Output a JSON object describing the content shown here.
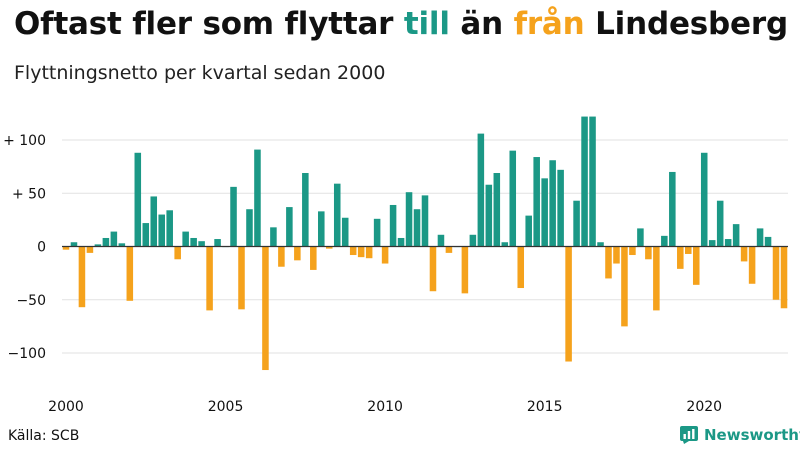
{
  "title": {
    "prefix": "Oftast fler som flyttar",
    "pos_word": "till",
    "middle": "än",
    "neg_word": "från",
    "place": "Lindesberg"
  },
  "subtitle": "Flyttningsnetto per kvartal sedan 2000",
  "source": "Källa: SCB",
  "brand": {
    "name": "Newsworthy",
    "icon": "newsworthy-chart-icon"
  },
  "colors": {
    "positive": "#1b9886",
    "negative": "#f5a21c",
    "text": "#111111",
    "grid": "#e2e2e2"
  },
  "chart_data": {
    "type": "bar",
    "title": "Flyttningsnetto per kvartal sedan 2000",
    "x_start": "2000 Q1",
    "x_ticks": [
      "2000",
      "2005",
      "2010",
      "2015",
      "2020"
    ],
    "y_ticks": [
      "+ 100",
      "+  50",
      "0",
      "−50",
      "−100"
    ],
    "y_tick_values": [
      100,
      50,
      0,
      -50,
      -100
    ],
    "ylim": [
      -120,
      125
    ],
    "grid": true,
    "values": [
      -3,
      4,
      -57,
      -6,
      2,
      8,
      14,
      3,
      -51,
      88,
      22,
      47,
      30,
      34,
      -12,
      14,
      8,
      5,
      -60,
      7,
      0,
      56,
      -59,
      35,
      91,
      -116,
      18,
      -19,
      37,
      -13,
      69,
      -22,
      33,
      -2,
      59,
      27,
      -8,
      -10,
      -11,
      26,
      -16,
      39,
      8,
      51,
      35,
      48,
      -42,
      11,
      -6,
      0,
      -44,
      11,
      106,
      58,
      69,
      4,
      90,
      -39,
      29,
      84,
      64,
      81,
      72,
      -108,
      43,
      122,
      122,
      4,
      -30,
      -16,
      -75,
      -8,
      17,
      -12,
      -60,
      10,
      70,
      -21,
      -7,
      -36,
      88,
      6,
      43,
      7,
      21,
      -14,
      -35,
      17,
      9,
      -50,
      -58
    ]
  }
}
